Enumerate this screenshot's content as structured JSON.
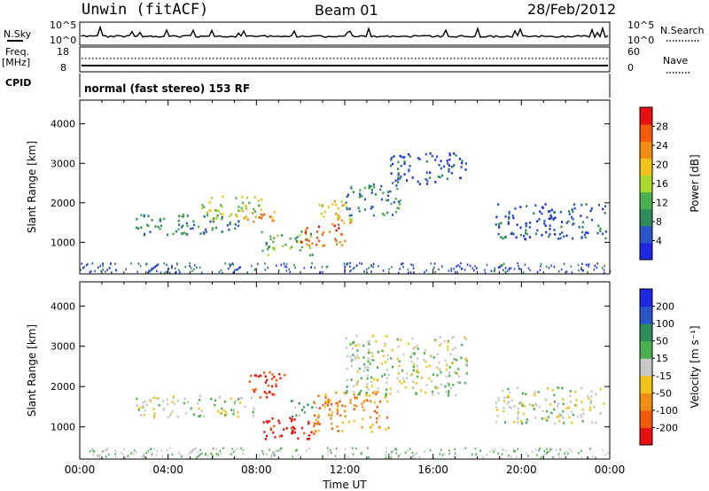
{
  "header": {
    "station": "Unwin (fitACF)",
    "beam": "Beam 01",
    "date": "28/Feb/2012"
  },
  "nsky_label": "N.Sky",
  "nsearch_label": "N.Search",
  "nsky_ticks": [
    "10^5",
    "10^0"
  ],
  "freq_label": "Freq.",
  "freq_unit": "[MHz]",
  "freq_ticks": [
    "18",
    "8"
  ],
  "nave_label": "Nave",
  "nave_ticks": [
    "60",
    "0"
  ],
  "cpid_label": "CPID",
  "cpid_text": "normal (fast stereo) 153 RF",
  "colors": {
    "power": [
      "#1f28e0",
      "#2a55c8",
      "#2f8c5a",
      "#4caf50",
      "#a8d82a",
      "#f2c31a",
      "#f28c14",
      "#f05a0a",
      "#e81010"
    ],
    "velocity": [
      "#e81010",
      "#f05a0a",
      "#f28c14",
      "#f2c31a",
      "#c8c8c8",
      "#4caf50",
      "#2f8c5a",
      "#2a55c8",
      "#1f28e0"
    ]
  },
  "chart_data": [
    {
      "type": "heatmap",
      "panel": "power",
      "ylabel": "Slant Range [km]",
      "yticks": [
        1000,
        2000,
        3000,
        4000
      ],
      "ylim": [
        200,
        4600
      ],
      "xlim": [
        0,
        24
      ],
      "colorbar_label": "Power [dB]",
      "colorbar_ticks": [
        "4",
        "8",
        "12",
        "16",
        "20",
        "24",
        "28"
      ],
      "regions": [
        {
          "t0": 2.5,
          "t1": 7.2,
          "r0": 1200,
          "r1": 1750,
          "level": 2
        },
        {
          "t0": 5.5,
          "t1": 8.2,
          "r0": 1600,
          "r1": 2200,
          "level": 4
        },
        {
          "t0": 7.3,
          "t1": 9.2,
          "r0": 1550,
          "r1": 1900,
          "level": 6
        },
        {
          "t0": 8.2,
          "t1": 10.5,
          "r0": 700,
          "r1": 1300,
          "level": 3
        },
        {
          "t0": 10.0,
          "t1": 12.0,
          "r0": 900,
          "r1": 1500,
          "level": 7
        },
        {
          "t0": 10.8,
          "t1": 12.3,
          "r0": 1500,
          "r1": 2100,
          "level": 5
        },
        {
          "t0": 12.0,
          "t1": 14.5,
          "r0": 1700,
          "r1": 2500,
          "level": 2
        },
        {
          "t0": 14.0,
          "t1": 17.5,
          "r0": 2500,
          "r1": 3300,
          "level": 1
        },
        {
          "t0": 18.8,
          "t1": 23.8,
          "r0": 1100,
          "r1": 2000,
          "level": 1
        }
      ]
    },
    {
      "type": "heatmap",
      "panel": "velocity",
      "ylabel": "Slant Range [km]",
      "xlabel": "Time UT",
      "yticks": [
        1000,
        2000,
        3000,
        4000
      ],
      "ylim": [
        200,
        4600
      ],
      "xlim": [
        0,
        24
      ],
      "xticks": [
        "00:00",
        "04:00",
        "08:00",
        "12:00",
        "16:00",
        "20:00",
        "00:00"
      ],
      "colorbar_label": "Velocity [m s⁻¹]",
      "colorbar_ticks": [
        "-200",
        "-100",
        "-50",
        "-15",
        "15",
        "50",
        "100",
        "200"
      ],
      "regions": [
        {
          "t0": 2.5,
          "t1": 8.0,
          "r0": 1250,
          "r1": 1800,
          "level": 4
        },
        {
          "t0": 7.6,
          "t1": 9.3,
          "r0": 1700,
          "r1": 2400,
          "level": 0
        },
        {
          "t0": 8.2,
          "t1": 10.8,
          "r0": 700,
          "r1": 1300,
          "level": 0
        },
        {
          "t0": 9.5,
          "t1": 10.8,
          "r0": 1250,
          "r1": 1700,
          "level": 5
        },
        {
          "t0": 10.5,
          "t1": 14.0,
          "r0": 900,
          "r1": 1900,
          "level": 2
        },
        {
          "t0": 12.0,
          "t1": 17.5,
          "r0": 1800,
          "r1": 3300,
          "level": 4
        },
        {
          "t0": 18.8,
          "t1": 23.8,
          "r0": 1100,
          "r1": 2000,
          "level": 4
        }
      ]
    }
  ]
}
